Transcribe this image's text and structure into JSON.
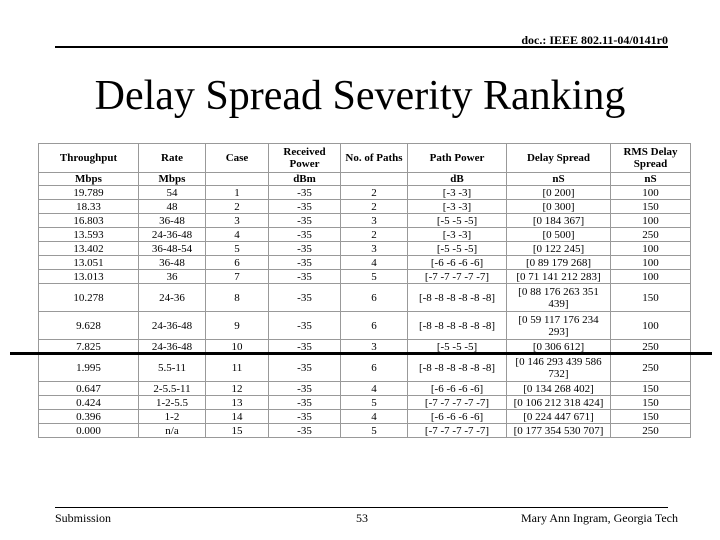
{
  "header": {
    "doc_id": "doc.: IEEE 802.11-04/0141r0"
  },
  "title": "Delay Spread Severity Ranking",
  "table": {
    "headers": [
      "Throughput",
      "Rate",
      "Case",
      "Received Power",
      "No. of Paths",
      "Path Power",
      "Delay Spread",
      "RMS Delay Spread"
    ],
    "units": [
      "Mbps",
      "Mbps",
      null,
      "dBm",
      null,
      "dB",
      "nS",
      "nS"
    ],
    "rows": [
      [
        "19.789",
        "54",
        "1",
        "-35",
        "2",
        "[-3 -3]",
        "[0 200]",
        "100"
      ],
      [
        "18.33",
        "48",
        "2",
        "-35",
        "2",
        "[-3 -3]",
        "[0 300]",
        "150"
      ],
      [
        "16.803",
        "36-48",
        "3",
        "-35",
        "3",
        "[-5 -5 -5]",
        "[0 184 367]",
        "100"
      ],
      [
        "13.593",
        "24-36-48",
        "4",
        "-35",
        "2",
        "[-3 -3]",
        "[0 500]",
        "250"
      ],
      [
        "13.402",
        "36-48-54",
        "5",
        "-35",
        "3",
        "[-5 -5 -5]",
        "[0 122 245]",
        "100"
      ],
      [
        "13.051",
        "36-48",
        "6",
        "-35",
        "4",
        "[-6 -6 -6 -6]",
        "[0 89 179 268]",
        "100"
      ],
      [
        "13.013",
        "36",
        "7",
        "-35",
        "5",
        "[-7 -7 -7 -7 -7]",
        "[0 71 141 212 283]",
        "100"
      ],
      [
        "10.278",
        "24-36",
        "8",
        "-35",
        "6",
        "[-8 -8 -8 -8 -8 -8]",
        "[0 88 176 263 351 439]",
        "150"
      ],
      [
        "9.628",
        "24-36-48",
        "9",
        "-35",
        "6",
        "[-8 -8 -8 -8 -8 -8]",
        "[0 59 117 176 234 293]",
        "100"
      ],
      [
        "7.825",
        "24-36-48",
        "10",
        "-35",
        "3",
        "[-5 -5 -5]",
        "[0 306 612]",
        "250"
      ],
      [
        "1.995",
        "5.5-11",
        "11",
        "-35",
        "6",
        "[-8 -8 -8 -8 -8 -8]",
        "[0 146 293 439 586 732]",
        "250"
      ],
      [
        "0.647",
        "2-5.5-11",
        "12",
        "-35",
        "4",
        "[-6 -6 -6 -6]",
        "[0 134 268 402]",
        "150"
      ],
      [
        "0.424",
        "1-2-5.5",
        "13",
        "-35",
        "5",
        "[-7 -7 -7 -7 -7]",
        "[0 106 212 318 424]",
        "150"
      ],
      [
        "0.396",
        "1-2",
        "14",
        "-35",
        "4",
        "[-6 -6 -6 -6]",
        "[0 224 447 671]",
        "150"
      ],
      [
        "0.000",
        "n/a",
        "15",
        "-35",
        "5",
        "[-7 -7 -7 -7 -7]",
        "[0 177 354 530 707]",
        "250"
      ]
    ]
  },
  "footer": {
    "left": "Submission",
    "center": "53",
    "right": "Mary Ann Ingram, Georgia Tech"
  }
}
